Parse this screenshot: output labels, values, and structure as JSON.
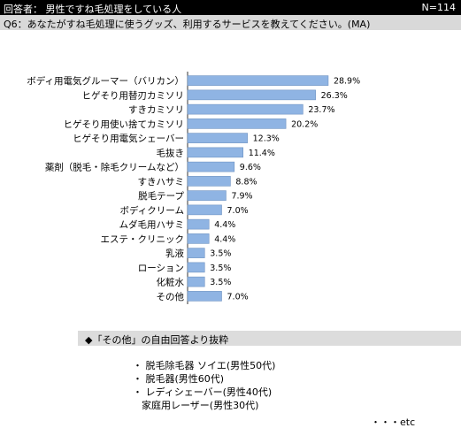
{
  "header": {
    "respondents": "回答者：  男性ですね毛処理をしている人",
    "n": "N=114"
  },
  "question": "Q6：あなたがすね毛処理に使うグッズ、利用するサービスを教えてください。(MA)",
  "chart_data": {
    "type": "bar",
    "orientation": "horizontal",
    "categories": [
      "ボディ用電気グルーマー（バリカン）",
      "ヒゲそり用替刃カミソリ",
      "すきカミソリ",
      "ヒゲそり用使い捨てカミソリ",
      "ヒゲそり用電気シェーバー",
      "毛抜き",
      "薬剤（脱毛・除毛クリームなど）",
      "すきハサミ",
      "脱毛テープ",
      "ボディクリーム",
      "ムダ毛用ハサミ",
      "エステ・クリニック",
      "乳液",
      "ローション",
      "化粧水",
      "その他"
    ],
    "values": [
      28.9,
      26.3,
      23.7,
      20.2,
      12.3,
      11.4,
      9.6,
      8.8,
      7.9,
      7.0,
      4.4,
      4.4,
      3.5,
      3.5,
      3.5,
      7.0
    ],
    "value_labels": [
      "28.9%",
      "26.3%",
      "23.7%",
      "20.2%",
      "12.3%",
      "11.4%",
      "9.6%",
      "8.8%",
      "7.9%",
      "7.0%",
      "4.4%",
      "4.4%",
      "3.5%",
      "3.5%",
      "3.5%",
      "7.0%"
    ],
    "unit": "%",
    "colors": {
      "bar_fill": "#8fb4e3",
      "bar_stroke": "#6e92c2"
    }
  },
  "notes": {
    "heading": "◆「その他」の自由回答より抜粋",
    "items": [
      "・ 脱毛除毛器 ソイエ(男性50代)",
      "・ 脱毛器(男性60代)",
      "・ レディシェーバー(男性40代)"
    ],
    "continuation": "家庭用レーザー(男性30代)",
    "etc": "・・・etc"
  }
}
